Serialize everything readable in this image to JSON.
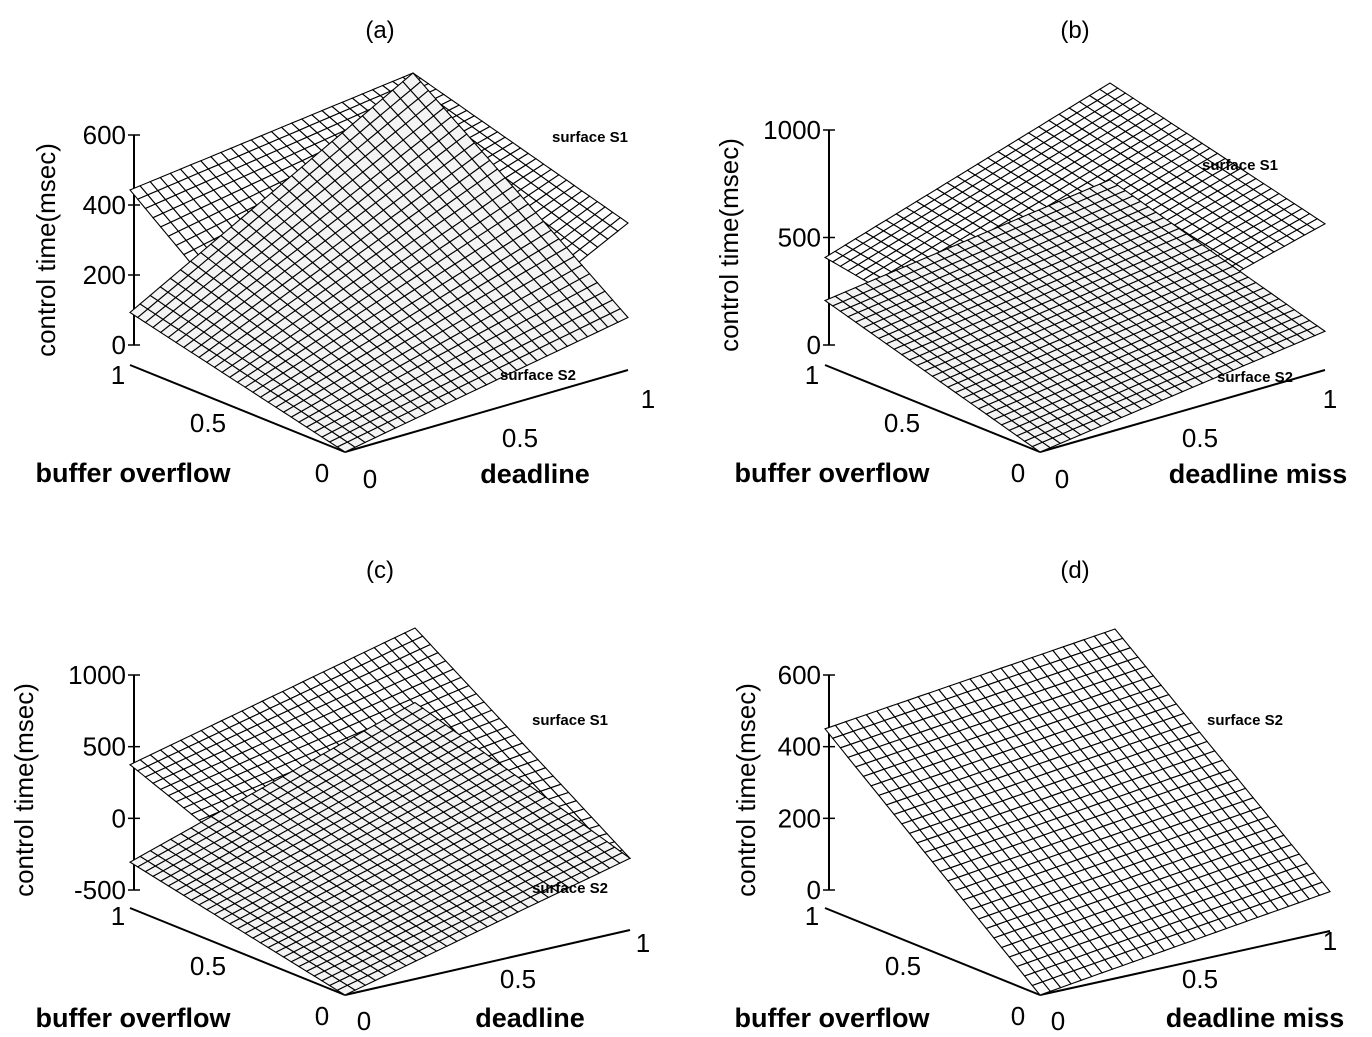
{
  "chart_data": [
    {
      "type": "surface",
      "title": "(a)",
      "xlabel": "buffer overflow",
      "ylabel": "deadline",
      "zlabel": "control time(msec)",
      "xlim": [
        0,
        1
      ],
      "ylim": [
        0,
        1
      ],
      "zlim": [
        0,
        600
      ],
      "x_ticks": [
        "0",
        "0.5",
        "1"
      ],
      "y_ticks": [
        "0",
        "0.5",
        "1"
      ],
      "z_ticks": [
        "0",
        "200",
        "400",
        "600"
      ],
      "series": [
        {
          "name": "surface S1",
          "corners": {
            "x0y0": 10,
            "x1y0": 500,
            "x1y1": 600,
            "x0y1": 420
          }
        },
        {
          "name": "surface S2",
          "corners": {
            "x0y0": 0,
            "x1y0": 150,
            "x1y1": 600,
            "x0y1": 150
          }
        }
      ]
    },
    {
      "type": "surface",
      "title": "(b)",
      "xlabel": "buffer overflow",
      "ylabel": "deadline miss",
      "zlabel": "control time(msec)",
      "xlim": [
        0,
        1
      ],
      "ylim": [
        0,
        1
      ],
      "zlim": [
        0,
        1000
      ],
      "x_ticks": [
        "0",
        "0.5",
        "1"
      ],
      "y_ticks": [
        "0",
        "0.5",
        "1"
      ],
      "z_ticks": [
        "0",
        "500",
        "1000"
      ],
      "series": [
        {
          "name": "surface S1",
          "corners": {
            "x0y0": 330,
            "x1y0": 500,
            "x1y1": 930,
            "x0y1": 680
          }
        },
        {
          "name": "surface S2",
          "corners": {
            "x0y0": 0,
            "x1y0": 300,
            "x1y1": 480,
            "x0y1": 180
          }
        }
      ]
    },
    {
      "type": "surface",
      "title": "(c)",
      "xlabel": "buffer overflow",
      "ylabel": "deadline",
      "zlabel": "control time(msec)",
      "xlim": [
        0,
        1
      ],
      "ylim": [
        0,
        1
      ],
      "zlim": [
        -500,
        1000
      ],
      "x_ticks": [
        "0",
        "0.5",
        "1"
      ],
      "y_ticks": [
        "0",
        "0.5",
        "1"
      ],
      "z_ticks": [
        "-500",
        "0",
        "500",
        "1000"
      ],
      "series": [
        {
          "name": "surface S1",
          "corners": {
            "x0y0": -100,
            "x1y0": 500,
            "x1y1": 1000,
            "x0y1": 0
          }
        },
        {
          "name": "surface S2",
          "corners": {
            "x0y0": -500,
            "x1y0": -180,
            "x1y1": 480,
            "x0y1": 0
          }
        }
      ]
    },
    {
      "type": "surface",
      "title": "(d)",
      "xlabel": "buffer overflow",
      "ylabel": "deadline miss",
      "zlabel": "control time(msec)",
      "xlim": [
        0,
        1
      ],
      "ylim": [
        0,
        1
      ],
      "zlim": [
        0,
        600
      ],
      "x_ticks": [
        "0",
        "0.5",
        "1"
      ],
      "y_ticks": [
        "0",
        "0.5",
        "1"
      ],
      "z_ticks": [
        "0",
        "200",
        "400",
        "600"
      ],
      "series": [
        {
          "name": "surface S2",
          "corners": {
            "x0y0": 0,
            "x1y0": 500,
            "x1y1": 600,
            "x0y1": 110
          }
        }
      ]
    }
  ]
}
